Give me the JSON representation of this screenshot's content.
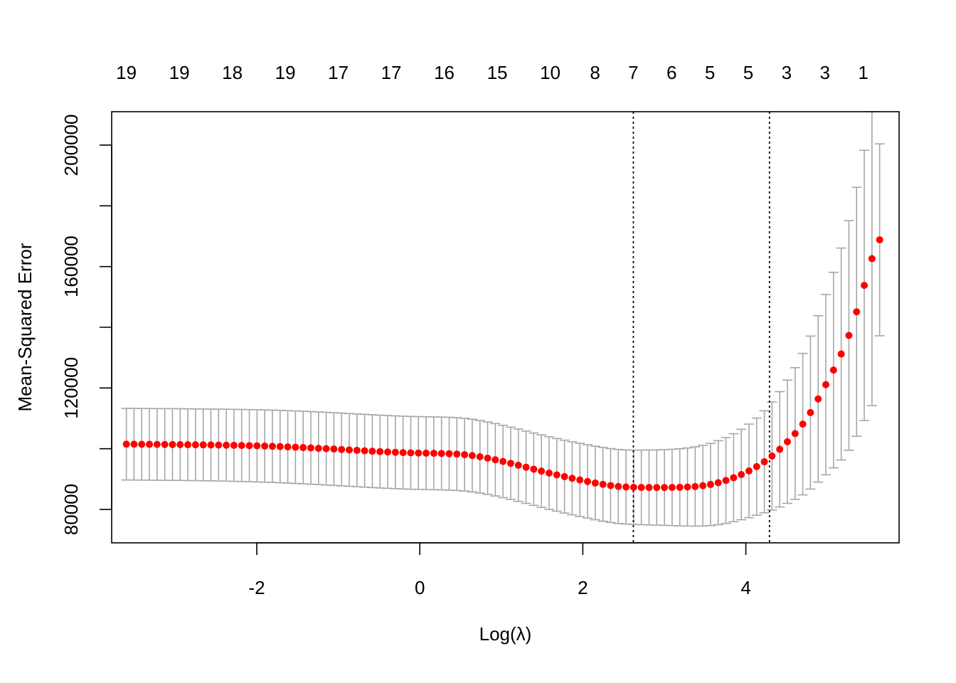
{
  "chart_data": {
    "type": "scatter",
    "xlabel": "Log(λ)",
    "ylabel": "Mean-Squared Error",
    "xlim": [
      -3.78,
      5.88
    ],
    "ylim": [
      69000,
      211000
    ],
    "x_ticks": [
      -2,
      0,
      2,
      4
    ],
    "x_tick_labels": [
      "-2",
      "0",
      "2",
      "4"
    ],
    "y_ticks": [
      80000,
      100000,
      120000,
      140000,
      160000,
      180000,
      200000
    ],
    "y_tick_labels": [
      "80000",
      "",
      "120000",
      "",
      "160000",
      "",
      "200000"
    ],
    "top_axis": {
      "x": [
        -3.6,
        -2.95,
        -2.3,
        -1.65,
        -1.0,
        -0.35,
        0.3,
        0.95,
        1.6,
        2.15,
        2.62,
        3.09,
        3.56,
        4.03,
        4.5,
        4.97,
        5.44
      ],
      "labels": [
        "19",
        "19",
        "18",
        "19",
        "17",
        "17",
        "16",
        "15",
        "10",
        "8",
        "7",
        "6",
        "5",
        "5",
        "3",
        "3",
        "1"
      ]
    },
    "vlines": [
      2.62,
      4.29
    ],
    "series": [
      {
        "x_start": -3.6,
        "x_step": 0.0943,
        "mse": [
          101500,
          101480,
          101460,
          101440,
          101420,
          101400,
          101380,
          101360,
          101330,
          101300,
          101270,
          101240,
          101200,
          101160,
          101120,
          101070,
          101010,
          100950,
          100880,
          100800,
          100710,
          100610,
          100500,
          100390,
          100270,
          100150,
          100020,
          99890,
          99750,
          99610,
          99470,
          99330,
          99190,
          99060,
          98940,
          98830,
          98730,
          98650,
          98590,
          98540,
          98490,
          98430,
          98360,
          98240,
          98040,
          97740,
          97350,
          96880,
          96360,
          95800,
          95200,
          94560,
          93910,
          93260,
          92620,
          91990,
          91390,
          90810,
          90260,
          89730,
          89210,
          88720,
          88270,
          87870,
          87570,
          87400,
          87310,
          87260,
          87240,
          87230,
          87230,
          87250,
          87300,
          87390,
          87550,
          87820,
          88230,
          88810,
          89550,
          90450,
          91500,
          92700,
          94100,
          95700,
          97600,
          99800,
          102300,
          105000,
          108100,
          111900,
          116400,
          121100,
          125900,
          131200,
          137300,
          145100,
          153800,
          162600,
          168800
        ],
        "se": [
          11800,
          11800,
          11800,
          11800,
          11800,
          11800,
          11810,
          11810,
          11810,
          11820,
          11820,
          11830,
          11840,
          11850,
          11860,
          11870,
          11880,
          11890,
          11900,
          11910,
          11920,
          11930,
          11940,
          11950,
          11960,
          11960,
          11970,
          11970,
          11980,
          11980,
          11980,
          11990,
          11990,
          11990,
          11990,
          11990,
          11990,
          11990,
          11990,
          11990,
          11990,
          11990,
          11990,
          11990,
          11980,
          11970,
          11950,
          11930,
          11920,
          11910,
          11900,
          11900,
          11900,
          11910,
          11930,
          11950,
          11970,
          12000,
          12030,
          12060,
          12090,
          12110,
          12140,
          12160,
          12190,
          12210,
          12240,
          12280,
          12330,
          12390,
          12470,
          12570,
          12700,
          12860,
          13050,
          13280,
          13540,
          13830,
          14150,
          14500,
          14900,
          15400,
          16000,
          16800,
          17800,
          19000,
          20300,
          21700,
          23300,
          25200,
          27400,
          29700,
          32200,
          34900,
          37800,
          41000,
          44500,
          48400,
          31600
        ]
      }
    ],
    "colors": {
      "point": "#ff0000",
      "errorbar": "#a6a6a6",
      "axis": "#000000",
      "vline": "#000000"
    },
    "grid": false,
    "legend": "none"
  }
}
